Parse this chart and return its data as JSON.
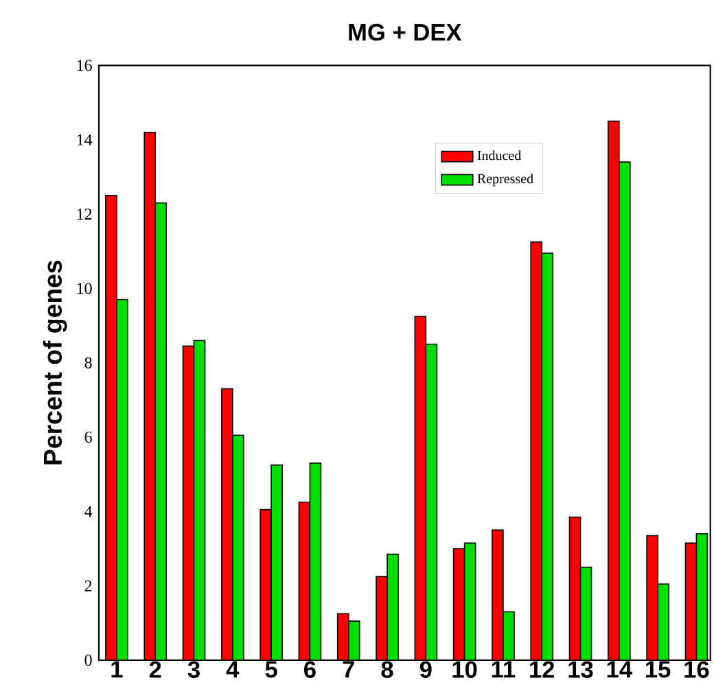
{
  "chart_data": {
    "type": "bar",
    "title": "MG + DEX",
    "ylabel": "Percent of genes",
    "categories": [
      "1",
      "2",
      "3",
      "4",
      "5",
      "6",
      "7",
      "8",
      "9",
      "10",
      "11",
      "12",
      "13",
      "14",
      "15",
      "16"
    ],
    "series": [
      {
        "name": "Induced",
        "color": "#ff0000",
        "values": [
          12.5,
          14.2,
          8.45,
          7.3,
          4.05,
          4.25,
          1.25,
          2.25,
          9.25,
          3.0,
          3.5,
          11.25,
          3.85,
          14.5,
          3.35,
          3.15
        ]
      },
      {
        "name": "Repressed",
        "color": "#00e000",
        "values": [
          9.7,
          12.3,
          8.6,
          6.05,
          5.25,
          5.3,
          1.05,
          2.85,
          8.5,
          3.15,
          1.3,
          10.95,
          2.5,
          13.4,
          2.05,
          3.4
        ]
      }
    ],
    "ylim": [
      0,
      16
    ],
    "yticks": [
      0,
      2,
      4,
      6,
      8,
      10,
      12,
      14,
      16
    ],
    "legend": "top right"
  }
}
